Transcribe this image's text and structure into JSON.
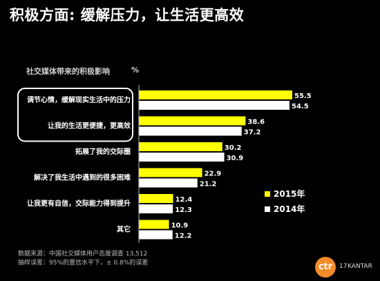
{
  "title": "积极方面: 缓解压力，让生活更高效",
  "chart_header": "社交媒体带来的积极影响",
  "unit": "%",
  "chart_data": {
    "type": "bar",
    "orientation": "horizontal",
    "categories": [
      "调节心情，缓解现实生活中的压力",
      "让我的生活更便捷，更高效",
      "拓展了我的交际圈",
      "解决了我生活中遇到的很多困难",
      "让我更有自信，交际能力得到提升",
      "其它"
    ],
    "series": [
      {
        "name": "2015年",
        "color": "#ffff00",
        "values": [
          55.5,
          38.6,
          30.2,
          22.9,
          12.4,
          10.9
        ]
      },
      {
        "name": "2014年",
        "color": "#ffffff",
        "values": [
          54.5,
          37.2,
          30.9,
          21.2,
          12.3,
          12.2
        ]
      }
    ],
    "xlim": [
      0,
      60
    ],
    "highlighted_categories": [
      0,
      1
    ],
    "legend_position": "right"
  },
  "source": {
    "line1": "数据来源：中国社交媒体用户态度调查 13,512",
    "line2": "抽样误差：95%的置信水平下，± 0.8%的误差"
  },
  "footer": {
    "logo": "ctr",
    "page_number": "17",
    "brand": "KANTAR"
  }
}
